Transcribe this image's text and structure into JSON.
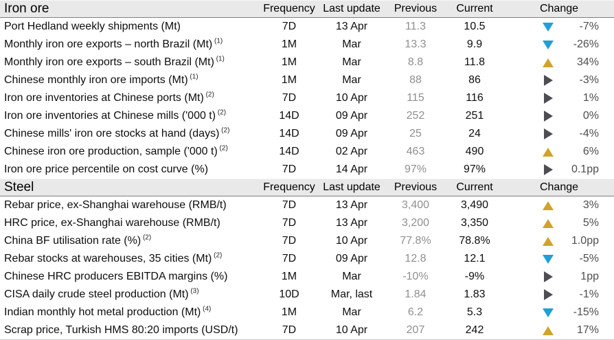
{
  "columns": [
    "Frequency",
    "Last update",
    "Previous",
    "Current",
    "Change"
  ],
  "colors": {
    "header_band_background": "#e9e9e9",
    "header_band_border": "#7f7f7f",
    "triangle_up": "#d1a32b",
    "triangle_down": "#219fd7",
    "triangle_flat": "#4d4d54",
    "previous_text": "#8f8f8f",
    "change_text": "#4d4d4d"
  },
  "sections": [
    {
      "title": "Iron ore",
      "rows": [
        {
          "label": "Port Hedland weekly shipments (Mt)",
          "footnote": "",
          "frequency": "7D",
          "last_update": "13 Apr",
          "previous": "11.3",
          "current": "10.5",
          "direction": "down",
          "change": "-7%"
        },
        {
          "label": "Monthly iron ore exports – north Brazil (Mt)",
          "footnote": "(1)",
          "frequency": "1M",
          "last_update": "Mar",
          "previous": "13.3",
          "current": "9.9",
          "direction": "down",
          "change": "-26%"
        },
        {
          "label": "Monthly iron ore exports – south Brazil (Mt)",
          "footnote": "(1)",
          "frequency": "1M",
          "last_update": "Mar",
          "previous": "8.8",
          "current": "11.8",
          "direction": "up",
          "change": "34%"
        },
        {
          "label": "Chinese monthly iron ore imports (Mt)",
          "footnote": "(1)",
          "frequency": "1M",
          "last_update": "Mar",
          "previous": "88",
          "current": "86",
          "direction": "flat",
          "change": "-3%"
        },
        {
          "label": "Iron ore inventories at Chinese ports (Mt)",
          "footnote": "(2)",
          "frequency": "7D",
          "last_update": "10 Apr",
          "previous": "115",
          "current": "116",
          "direction": "flat",
          "change": "1%"
        },
        {
          "label": "Iron ore inventories at Chinese mills ('000 t)",
          "footnote": "(2)",
          "frequency": "14D",
          "last_update": "09 Apr",
          "previous": "252",
          "current": "251",
          "direction": "flat",
          "change": "0%"
        },
        {
          "label": "Chinese mills' iron ore stocks at hand (days)",
          "footnote": "(2)",
          "frequency": "14D",
          "last_update": "09 Apr",
          "previous": "25",
          "current": "24",
          "direction": "flat",
          "change": "-4%"
        },
        {
          "label": "Chinese iron ore production, sample ('000 t)",
          "footnote": "(2)",
          "frequency": "14D",
          "last_update": "02 Apr",
          "previous": "463",
          "current": "490",
          "direction": "up",
          "change": "6%"
        },
        {
          "label": "Iron ore price percentile on cost curve (%)",
          "footnote": "",
          "frequency": "7D",
          "last_update": "14 Apr",
          "previous": "97%",
          "current": "97%",
          "direction": "flat",
          "change": "0.1pp"
        }
      ]
    },
    {
      "title": "Steel",
      "rows": [
        {
          "label": "Rebar price, ex-Shanghai warehouse (RMB/t)",
          "footnote": "",
          "frequency": "7D",
          "last_update": "13 Apr",
          "previous": "3,400",
          "current": "3,490",
          "direction": "up",
          "change": "3%"
        },
        {
          "label": "HRC price, ex-Shanghai warehouse (RMB/t)",
          "footnote": "",
          "frequency": "7D",
          "last_update": "13 Apr",
          "previous": "3,200",
          "current": "3,350",
          "direction": "up",
          "change": "5%"
        },
        {
          "label": "China BF utilisation rate (%)",
          "footnote": "(2)",
          "frequency": "7D",
          "last_update": "10 Apr",
          "previous": "77.8%",
          "current": "78.8%",
          "direction": "up",
          "change": "1.0pp"
        },
        {
          "label": "Rebar stocks at warehouses, 35 cities (Mt)",
          "footnote": "(2)",
          "frequency": "7D",
          "last_update": "09 Apr",
          "previous": "12.8",
          "current": "12.1",
          "direction": "down",
          "change": "-5%"
        },
        {
          "label": "Chinese HRC producers EBITDA margins (%)",
          "footnote": "",
          "frequency": "1M",
          "last_update": "Mar",
          "previous": "-10%",
          "current": "-9%",
          "direction": "flat",
          "change": "1pp"
        },
        {
          "label": "CISA daily crude steel production (Mt)",
          "footnote": "(3)",
          "frequency": "10D",
          "last_update": "Mar, last",
          "previous": "1.84",
          "current": "1.83",
          "direction": "flat",
          "change": "-1%"
        },
        {
          "label": "Indian monthly hot metal production (Mt)",
          "footnote": "(4)",
          "frequency": "1M",
          "last_update": "Mar",
          "previous": "6.2",
          "current": "5.3",
          "direction": "down",
          "change": "-15%"
        },
        {
          "label": "Scrap price, Turkish HMS 80:20 imports (USD/t)",
          "footnote": "",
          "frequency": "7D",
          "last_update": "10 Apr",
          "previous": "207",
          "current": "242",
          "direction": "up",
          "change": "17%"
        }
      ]
    }
  ]
}
